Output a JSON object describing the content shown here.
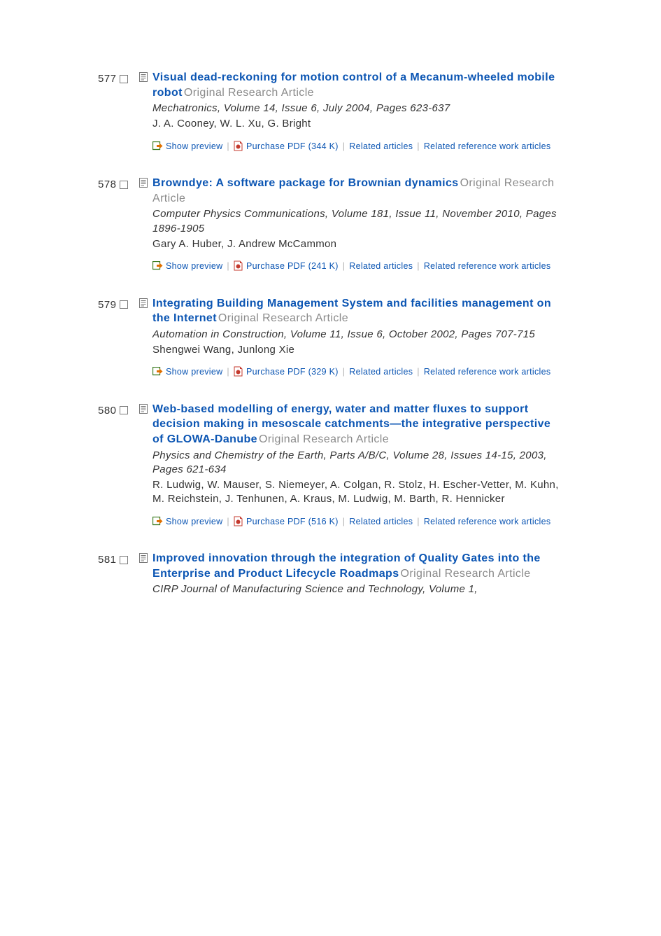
{
  "colors": {
    "link": "#0b55b3",
    "text": "#333333",
    "muted": "#8a8a8a",
    "separator": "#b0b0b0",
    "background": "#ffffff",
    "preview_icon_border": "#3a7a1e",
    "preview_icon_arrow": "#e07000",
    "pdf_icon_red": "#c43a2e"
  },
  "labels": {
    "show_preview": "Show preview",
    "related_articles": "Related articles",
    "related_reference": "Related reference work articles"
  },
  "results": [
    {
      "index": "577",
      "title": "Visual dead-reckoning for motion control of a Mecanum-wheeled mobile robot",
      "subtype": "Original Research Article",
      "journal": "Mechatronics",
      "volume_issue": "Volume 14, Issue 6",
      "date": "July 2004",
      "pages": "Pages 623-637",
      "authors": "J. A. Cooney, W. L. Xu, G. Bright",
      "pdf_label": "Purchase PDF (344 K)"
    },
    {
      "index": "578",
      "title": "Browndye: A software package for Brownian dynamics",
      "subtype": "Original Research Article",
      "journal": "Computer Physics Communications",
      "volume_issue": "Volume 181, Issue 11",
      "date": "November 2010",
      "pages": "Pages 1896-1905",
      "authors": "Gary A. Huber, J. Andrew McCammon",
      "pdf_label": "Purchase PDF (241 K)"
    },
    {
      "index": "579",
      "title": "Integrating Building Management System and facilities management on the Internet",
      "subtype": "Original Research Article",
      "journal": "Automation in Construction",
      "volume_issue": "Volume 11, Issue 6",
      "date": "October 2002",
      "pages": "Pages 707-715",
      "authors": "Shengwei Wang, Junlong Xie",
      "pdf_label": "Purchase PDF (329 K)"
    },
    {
      "index": "580",
      "title": "Web-based modelling of energy, water and matter fluxes to support decision making in mesoscale catchments—the integrative perspective of GLOWA-Danube",
      "subtype": "Original Research Article",
      "journal": "Physics and Chemistry of the Earth, Parts A/B/C",
      "volume_issue": "Volume 28, Issues 14-15",
      "date": "2003",
      "pages": "Pages 621-634",
      "authors": "R. Ludwig, W. Mauser, S. Niemeyer, A. Colgan, R. Stolz, H. Escher-Vetter, M. Kuhn, M. Reichstein, J. Tenhunen, A. Kraus, M. Ludwig, M. Barth, R. Hennicker",
      "pdf_label": "Purchase PDF (516 K)"
    },
    {
      "index": "581",
      "title": "Improved innovation through the integration of Quality Gates into the Enterprise and Product Lifecycle Roadmaps",
      "subtype": "Original Research Article",
      "journal": "CIRP Journal of Manufacturing Science and Technology",
      "volume_issue": "Volume 1,",
      "date": "",
      "pages": "",
      "authors": "",
      "pdf_label": "",
      "truncated": true
    }
  ]
}
